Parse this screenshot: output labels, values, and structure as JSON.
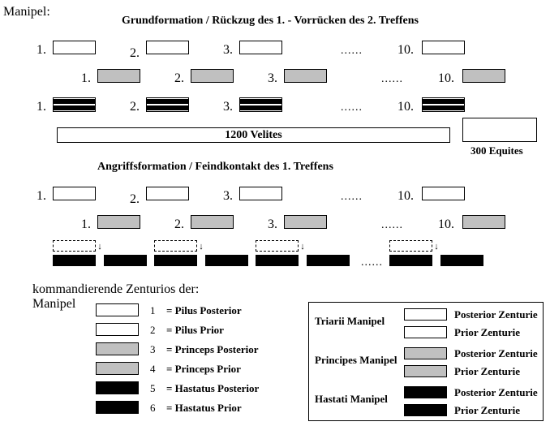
{
  "title": "Manipel:",
  "section1_title": "Grundformation / Rückzug des 1. - Vorrücken des 2. Treffens",
  "section2_title": "Angriffsformation / Feindkontakt des 1. Treffens",
  "legend_title": "kommandierende Zenturios der:",
  "legend_sub": "Manipel",
  "row_numbers": [
    "1.",
    "2.",
    "3.",
    "10."
  ],
  "dots": "......",
  "velites": "1200 Velites",
  "equites": "300 Equites",
  "colors": {
    "white": "#ffffff",
    "grey": "#c0c0c0",
    "black": "#000000",
    "border": "#000000"
  },
  "unit_size": {
    "w": 53,
    "h": 17
  },
  "legend_left": [
    {
      "n": "1",
      "t": "= Pilus Posterior",
      "c": "white"
    },
    {
      "n": "2",
      "t": "= Pilus Prior",
      "c": "white"
    },
    {
      "n": "3",
      "t": "= Princeps Posterior",
      "c": "grey"
    },
    {
      "n": "4",
      "t": "= Princeps Prior",
      "c": "grey"
    },
    {
      "n": "5",
      "t": "= Hastatus Posterior",
      "c": "black"
    },
    {
      "n": "6",
      "t": "= Hastatus Prior",
      "c": "black"
    }
  ],
  "legend_right": [
    {
      "g": "Triarii Manipel",
      "c": "white"
    },
    {
      "g": "Principes Manipel",
      "c": "grey"
    },
    {
      "g": "Hastati Manipel",
      "c": "black"
    }
  ],
  "legend_right_labels": [
    "Posterior Zenturie",
    "Prior Zenturie"
  ],
  "arrow": "↓"
}
